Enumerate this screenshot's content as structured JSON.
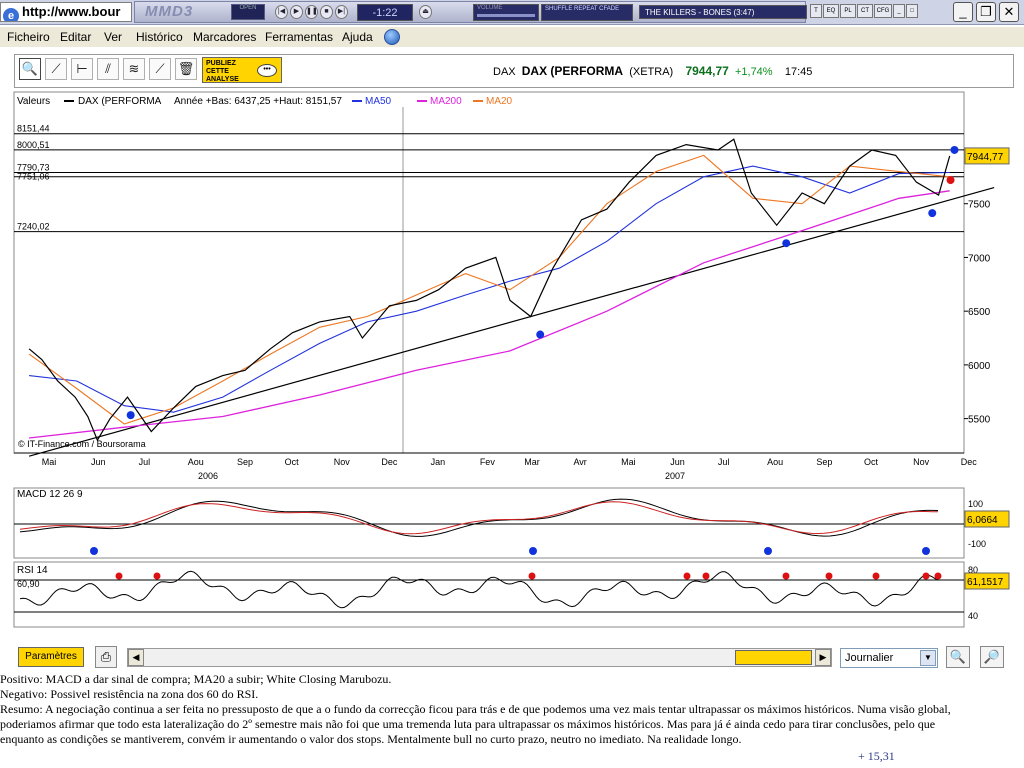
{
  "browser": {
    "url": "http://www.bour"
  },
  "winamp": {
    "logo": "MMD3",
    "sub": "winamp-player",
    "open_label": "OPEN",
    "time": "-1:22",
    "volume_label": "VOLUME",
    "shuffle_label": "SHUFFLE REPEAT CFADE",
    "track": "THE KILLERS - BONES (3:47)",
    "mini_tabs": [
      "T",
      "EQ",
      "PL",
      "CT",
      "CFG"
    ]
  },
  "menu": {
    "items": [
      "Ficheiro",
      "Editar",
      "Ver",
      "Histórico",
      "Marcadores",
      "Ferramentas",
      "Ajuda"
    ]
  },
  "toolbar": {
    "publiez": [
      "PUBLIEZ",
      "CETTE",
      "ANALYSE"
    ],
    "quote": {
      "exchange_code": "DAX",
      "name": "DAX (PERFORMA",
      "market": "(XETRA)",
      "price": "7944,77",
      "change": "+1,74%",
      "time": "17:45"
    }
  },
  "chart_data": [
    {
      "type": "line",
      "title": "Valeurs",
      "legend": [
        {
          "name": "DAX (PERFORMA",
          "color": "#000000"
        },
        {
          "name": "MA50",
          "color": "#2233dd"
        },
        {
          "name": "MA200",
          "color": "#dd22dd"
        },
        {
          "name": "MA20",
          "color": "#ee7722"
        }
      ],
      "stats": "Année +Bas: 6437,25 +Haut: 8151,57",
      "h_levels": [
        "8151,44",
        "8000,51",
        "7790,73",
        "7751,06",
        "7240,02"
      ],
      "h_level_values": [
        8151.44,
        8000.51,
        7790.73,
        7751.06,
        7240.02
      ],
      "y_ticks": [
        7500,
        7000,
        6500,
        6000,
        5500
      ],
      "ylim": [
        5180,
        8400
      ],
      "last_value": "7944,77",
      "months": [
        "Mai",
        "Jun",
        "Jul",
        "Aou",
        "Sep",
        "Oct",
        "Nov",
        "Dec",
        "Jan",
        "Fev",
        "Mar",
        "Avr",
        "Mai",
        "Jun",
        "Jul",
        "Aou",
        "Sep",
        "Oct",
        "Nov",
        "Dec"
      ],
      "years": [
        "2006",
        "2007"
      ],
      "credit": "© IT-Finance.com / Boursorama",
      "series_close": [
        {
          "x": "2006-05-02",
          "y": 6150
        },
        {
          "x": "2006-05-10",
          "y": 6050
        },
        {
          "x": "2006-05-20",
          "y": 5850
        },
        {
          "x": "2006-05-31",
          "y": 5700
        },
        {
          "x": "2006-06-08",
          "y": 5520
        },
        {
          "x": "2006-06-14",
          "y": 5300
        },
        {
          "x": "2006-06-22",
          "y": 5500
        },
        {
          "x": "2006-07-03",
          "y": 5700
        },
        {
          "x": "2006-07-18",
          "y": 5380
        },
        {
          "x": "2006-08-01",
          "y": 5600
        },
        {
          "x": "2006-08-15",
          "y": 5800
        },
        {
          "x": "2006-09-01",
          "y": 5900
        },
        {
          "x": "2006-09-15",
          "y": 5950
        },
        {
          "x": "2006-10-01",
          "y": 6150
        },
        {
          "x": "2006-10-15",
          "y": 6300
        },
        {
          "x": "2006-11-01",
          "y": 6400
        },
        {
          "x": "2006-11-20",
          "y": 6450
        },
        {
          "x": "2006-11-28",
          "y": 6250
        },
        {
          "x": "2006-12-15",
          "y": 6550
        },
        {
          "x": "2007-01-01",
          "y": 6600
        },
        {
          "x": "2007-01-15",
          "y": 6700
        },
        {
          "x": "2007-02-01",
          "y": 6900
        },
        {
          "x": "2007-02-20",
          "y": 7000
        },
        {
          "x": "2007-03-01",
          "y": 6600
        },
        {
          "x": "2007-03-14",
          "y": 6450
        },
        {
          "x": "2007-03-28",
          "y": 6900
        },
        {
          "x": "2007-04-15",
          "y": 7350
        },
        {
          "x": "2007-05-01",
          "y": 7450
        },
        {
          "x": "2007-05-15",
          "y": 7700
        },
        {
          "x": "2007-06-01",
          "y": 7950
        },
        {
          "x": "2007-06-20",
          "y": 8050
        },
        {
          "x": "2007-07-10",
          "y": 8000
        },
        {
          "x": "2007-07-20",
          "y": 8100
        },
        {
          "x": "2007-07-31",
          "y": 7600
        },
        {
          "x": "2007-08-16",
          "y": 7300
        },
        {
          "x": "2007-09-01",
          "y": 7600
        },
        {
          "x": "2007-09-15",
          "y": 7500
        },
        {
          "x": "2007-10-01",
          "y": 7850
        },
        {
          "x": "2007-10-15",
          "y": 8000
        },
        {
          "x": "2007-10-30",
          "y": 7950
        },
        {
          "x": "2007-11-12",
          "y": 7700
        },
        {
          "x": "2007-11-26",
          "y": 7580
        },
        {
          "x": "2007-12-03",
          "y": 7944.77
        }
      ],
      "series_ma50": [
        {
          "x": "2006-05-02",
          "y": 5900
        },
        {
          "x": "2006-06-01",
          "y": 5850
        },
        {
          "x": "2006-07-01",
          "y": 5620
        },
        {
          "x": "2006-08-01",
          "y": 5560
        },
        {
          "x": "2006-09-01",
          "y": 5700
        },
        {
          "x": "2006-10-01",
          "y": 5950
        },
        {
          "x": "2006-11-01",
          "y": 6200
        },
        {
          "x": "2006-12-01",
          "y": 6400
        },
        {
          "x": "2007-01-01",
          "y": 6500
        },
        {
          "x": "2007-02-01",
          "y": 6650
        },
        {
          "x": "2007-03-01",
          "y": 6780
        },
        {
          "x": "2007-04-01",
          "y": 6900
        },
        {
          "x": "2007-05-01",
          "y": 7150
        },
        {
          "x": "2007-06-01",
          "y": 7500
        },
        {
          "x": "2007-07-01",
          "y": 7750
        },
        {
          "x": "2007-08-01",
          "y": 7850
        },
        {
          "x": "2007-09-01",
          "y": 7750
        },
        {
          "x": "2007-10-01",
          "y": 7600
        },
        {
          "x": "2007-11-01",
          "y": 7780
        },
        {
          "x": "2007-12-03",
          "y": 7790
        }
      ],
      "series_ma200": [
        {
          "x": "2006-05-02",
          "y": 5320
        },
        {
          "x": "2006-07-01",
          "y": 5420
        },
        {
          "x": "2006-09-01",
          "y": 5520
        },
        {
          "x": "2006-11-01",
          "y": 5720
        },
        {
          "x": "2007-01-01",
          "y": 5950
        },
        {
          "x": "2007-03-01",
          "y": 6130
        },
        {
          "x": "2007-05-01",
          "y": 6500
        },
        {
          "x": "2007-07-01",
          "y": 6950
        },
        {
          "x": "2007-09-01",
          "y": 7250
        },
        {
          "x": "2007-11-01",
          "y": 7550
        },
        {
          "x": "2007-12-03",
          "y": 7620
        }
      ],
      "series_ma20": [
        {
          "x": "2006-05-02",
          "y": 6100
        },
        {
          "x": "2006-06-01",
          "y": 5780
        },
        {
          "x": "2006-07-01",
          "y": 5450
        },
        {
          "x": "2006-08-01",
          "y": 5600
        },
        {
          "x": "2006-09-01",
          "y": 5850
        },
        {
          "x": "2006-10-01",
          "y": 6100
        },
        {
          "x": "2006-11-01",
          "y": 6350
        },
        {
          "x": "2006-12-01",
          "y": 6450
        },
        {
          "x": "2007-01-01",
          "y": 6650
        },
        {
          "x": "2007-02-01",
          "y": 6850
        },
        {
          "x": "2007-03-01",
          "y": 6700
        },
        {
          "x": "2007-04-01",
          "y": 7000
        },
        {
          "x": "2007-05-01",
          "y": 7500
        },
        {
          "x": "2007-06-01",
          "y": 7800
        },
        {
          "x": "2007-07-01",
          "y": 7950
        },
        {
          "x": "2007-08-01",
          "y": 7550
        },
        {
          "x": "2007-09-01",
          "y": 7500
        },
        {
          "x": "2007-10-01",
          "y": 7850
        },
        {
          "x": "2007-11-01",
          "y": 7800
        },
        {
          "x": "2007-12-03",
          "y": 7750
        }
      ],
      "series_trendline": [
        {
          "x": "2006-05-02",
          "y": 5150
        },
        {
          "x": "2007-12-31",
          "y": 7650
        }
      ],
      "markers_buy": [
        "2006-07-05",
        "2007-03-20",
        "2007-08-22",
        "2007-11-22"
      ],
      "markers_sell": [
        "2007-12-01"
      ]
    },
    {
      "type": "line",
      "title": "MACD 12 26 9",
      "y_ticks": [
        100,
        -100
      ],
      "last_value": "6,0664"
    },
    {
      "type": "line",
      "title": "RSI 14",
      "level_label": "60,90",
      "y_ticks": [
        80,
        40
      ],
      "last_value": "61,1517"
    }
  ],
  "bottom": {
    "param_label": "Paramètres",
    "period": "Journalier"
  },
  "comment": {
    "positivo": "Positivo: MACD a dar sinal de compra; MA20 a subir; White Closing Marubozu.",
    "negativo": "Negativo: Possivel resistência na zona dos 60 do RSI.",
    "resumo": "Resumo: A negociação continua a ser feita no pressuposto de que a o fundo da correcção ficou para trás e de que podemos uma vez mais tentar ultrapassar os máximos históricos. Numa visão global, poderiamos afirmar que todo esta lateralização do 2º semestre mais não foi que uma tremenda luta para ultrapassar os máximos históricos. Mas para já é ainda cedo para tirar conclusões, pelo que enquanto as condições se mantiverem, convém ir aumentando o valor dos stops. Mentalmente bull no curto prazo, neutro no imediato. Na realidade longo.",
    "score": "+ 15,31"
  },
  "colors": {
    "accent_yellow": "#ffd400",
    "price_green": "#0b6f1c",
    "last_value_bg": "#ffd400"
  }
}
